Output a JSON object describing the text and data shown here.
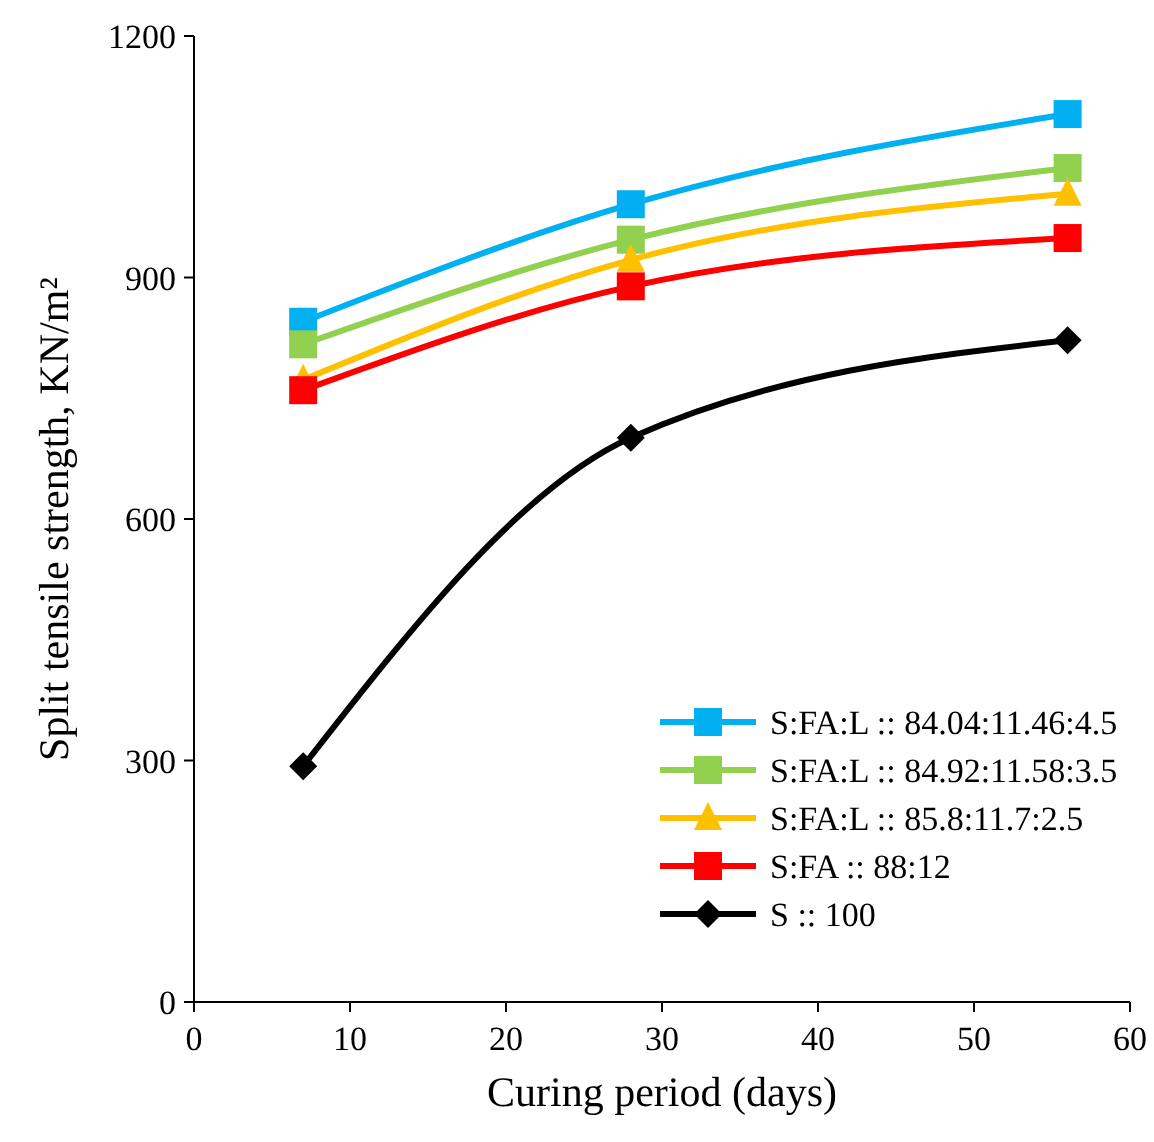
{
  "chart_data": {
    "type": "line",
    "xlabel": "Curing period (days)",
    "ylabel": "Split tensile strength, KN/m²",
    "x": [
      7,
      28,
      56
    ],
    "xlim": [
      0,
      60
    ],
    "xticks": [
      0,
      10,
      20,
      30,
      40,
      50,
      60
    ],
    "ylim": [
      0,
      1200
    ],
    "yticks": [
      0,
      300,
      600,
      900,
      1200
    ],
    "grid": false,
    "legend": "bottom right",
    "series": [
      {
        "name": "S:FA:L :: 84.04:11.46:4.5",
        "color": "#00b0f0",
        "marker": "square",
        "values": [
          845,
          991,
          1103
        ]
      },
      {
        "name": "S:FA:L :: 84.92:11.58:3.5",
        "color": "#92d050",
        "marker": "square",
        "values": [
          817,
          947,
          1036
        ]
      },
      {
        "name": "S:FA:L :: 85.8:11.7:2.5",
        "color": "#ffc000",
        "marker": "triangle",
        "values": [
          773,
          922,
          1004
        ]
      },
      {
        "name": "S:FA :: 88:12",
        "color": "#ff0000",
        "marker": "square",
        "values": [
          760,
          889,
          949
        ]
      },
      {
        "name": "S :: 100",
        "color": "#000000",
        "marker": "diamond",
        "values": [
          293,
          701,
          822
        ]
      }
    ]
  }
}
